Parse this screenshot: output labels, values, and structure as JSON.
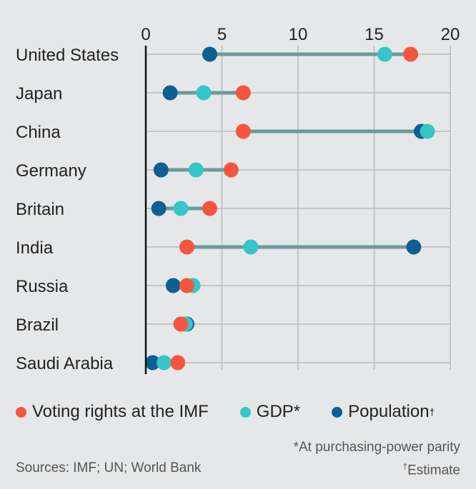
{
  "chart_data": {
    "type": "dot-range",
    "title": "",
    "xlabel": "",
    "ylabel": "",
    "xlim": [
      0,
      20
    ],
    "x_ticks": [
      0,
      5,
      10,
      15,
      20
    ],
    "grid": true,
    "legend_position": "bottom",
    "categories": [
      "United States",
      "Japan",
      "China",
      "Germany",
      "Britain",
      "India",
      "Russia",
      "Brazil",
      "Saudi Arabia"
    ],
    "series": [
      {
        "key": "voting",
        "name": "Voting rights at the IMF",
        "color": "#f4553f",
        "values": [
          17.4,
          6.4,
          6.4,
          5.6,
          4.2,
          2.7,
          2.7,
          2.3,
          2.1
        ]
      },
      {
        "key": "gdp",
        "name": "GDP*",
        "color": "#36c5c8",
        "values": [
          15.7,
          3.8,
          18.5,
          3.3,
          2.3,
          6.9,
          3.1,
          2.6,
          1.2
        ]
      },
      {
        "key": "population",
        "name": "Population†",
        "color": "#0d5f94",
        "values": [
          4.2,
          1.6,
          18.1,
          1.0,
          0.85,
          17.6,
          1.8,
          2.7,
          0.45
        ]
      }
    ],
    "connector_color": "#6b9a9c"
  },
  "legend": {
    "voting": "Voting rights at the IMF",
    "gdp": "GDP*",
    "population": "Population",
    "population_mark": "†"
  },
  "footer": {
    "sources": "Sources: IMF; UN; World Bank",
    "note1": "*At purchasing-power parity",
    "note2_mark": "†",
    "note2": "Estimate"
  }
}
